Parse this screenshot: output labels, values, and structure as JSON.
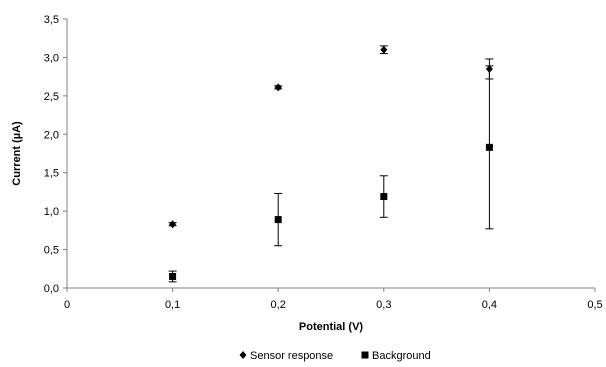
{
  "chart_data": {
    "type": "scatter",
    "title": "",
    "xlabel": "Potential (V)",
    "ylabel": "Current (µA)",
    "xlim": [
      0,
      0.5
    ],
    "ylim": [
      0,
      3.5
    ],
    "x_ticks": [
      "0",
      "0,1",
      "0,2",
      "0,3",
      "0,4",
      "0,5"
    ],
    "y_ticks": [
      "0,0",
      "0,5",
      "1,0",
      "1,5",
      "2,0",
      "2,5",
      "3,0",
      "3,5"
    ],
    "grid": false,
    "legend_position": "bottom",
    "series": [
      {
        "name": "Sensor response",
        "marker": "diamond",
        "color": "#000000",
        "points": [
          {
            "x": 0.1,
            "y": 0.83,
            "err": 0.02
          },
          {
            "x": 0.2,
            "y": 2.61,
            "err": 0.02
          },
          {
            "x": 0.3,
            "y": 3.1,
            "err": 0.05
          },
          {
            "x": 0.4,
            "y": 2.85,
            "err": 0.13
          }
        ]
      },
      {
        "name": "Background",
        "marker": "square",
        "color": "#000000",
        "points": [
          {
            "x": 0.1,
            "y": 0.15,
            "err": 0.07
          },
          {
            "x": 0.2,
            "y": 0.89,
            "err": 0.34
          },
          {
            "x": 0.3,
            "y": 1.19,
            "err": 0.27
          },
          {
            "x": 0.4,
            "y": 1.83,
            "err": 1.06
          }
        ]
      }
    ]
  }
}
